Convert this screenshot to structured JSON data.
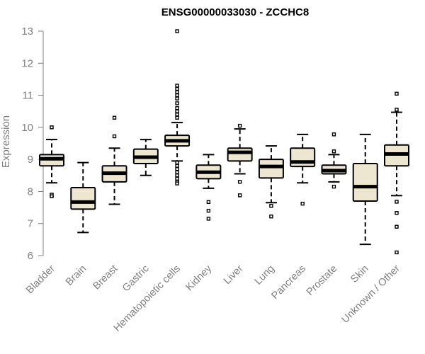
{
  "chart_data": {
    "type": "box",
    "title": "ENSG00000033030 - ZCCHC8",
    "xlabel": "",
    "ylabel": "Expression",
    "ylim": [
      6,
      13
    ],
    "yticks": [
      6,
      7,
      8,
      9,
      10,
      11,
      12,
      13
    ],
    "grid": false,
    "colors": {
      "box_fill": "#ede6d0",
      "box_stroke": "#000000",
      "axis": "#808080",
      "label": "#808080"
    },
    "categories": [
      "Bladder",
      "Brain",
      "Breast",
      "Gastric",
      "Hematopoietic cells",
      "Kidney",
      "Liver",
      "Lung",
      "Pancreas",
      "Prostate",
      "Skin",
      "Unknown / Other"
    ],
    "boxes": [
      {
        "q1": 8.8,
        "median": 9.02,
        "q3": 9.15,
        "whisker_low": 8.27,
        "whisker_high": 9.62,
        "outliers": [
          10.0,
          7.9,
          7.85
        ]
      },
      {
        "q1": 7.45,
        "median": 7.67,
        "q3": 8.12,
        "whisker_low": 6.72,
        "whisker_high": 8.9,
        "outliers": []
      },
      {
        "q1": 8.3,
        "median": 8.57,
        "q3": 8.8,
        "whisker_low": 7.6,
        "whisker_high": 9.35,
        "outliers": [
          10.3,
          9.72
        ]
      },
      {
        "q1": 8.87,
        "median": 9.07,
        "q3": 9.32,
        "whisker_low": 8.5,
        "whisker_high": 9.62,
        "outliers": []
      },
      {
        "q1": 9.42,
        "median": 9.58,
        "q3": 9.75,
        "whisker_low": 8.95,
        "whisker_high": 10.15,
        "outliers": [
          13.0,
          11.3,
          11.2,
          11.1,
          11.0,
          10.9,
          10.75,
          10.6,
          10.5,
          10.4,
          10.3,
          8.9,
          8.8,
          8.7,
          8.6,
          8.5,
          8.4,
          8.3,
          8.25
        ]
      },
      {
        "q1": 8.4,
        "median": 8.6,
        "q3": 8.82,
        "whisker_low": 8.1,
        "whisker_high": 9.15,
        "outliers": [
          7.67,
          7.4,
          7.15
        ]
      },
      {
        "q1": 8.95,
        "median": 9.22,
        "q3": 9.35,
        "whisker_low": 8.55,
        "whisker_high": 9.95,
        "outliers": [
          10.05,
          8.3,
          7.88
        ]
      },
      {
        "q1": 8.42,
        "median": 8.78,
        "q3": 9.0,
        "whisker_low": 7.65,
        "whisker_high": 9.42,
        "outliers": [
          7.55,
          7.22
        ]
      },
      {
        "q1": 8.78,
        "median": 8.92,
        "q3": 9.35,
        "whisker_low": 8.27,
        "whisker_high": 9.78,
        "outliers": [
          7.62
        ]
      },
      {
        "q1": 8.55,
        "median": 8.65,
        "q3": 8.82,
        "whisker_low": 8.3,
        "whisker_high": 9.15,
        "outliers": [
          9.78,
          9.25,
          8.15
        ]
      },
      {
        "q1": 7.7,
        "median": 8.15,
        "q3": 8.87,
        "whisker_low": 6.35,
        "whisker_high": 9.78,
        "outliers": []
      },
      {
        "q1": 8.8,
        "median": 9.17,
        "q3": 9.45,
        "whisker_low": 7.87,
        "whisker_high": 10.47,
        "outliers": [
          11.05,
          10.55,
          7.68,
          7.33,
          6.9,
          6.1
        ]
      }
    ]
  }
}
